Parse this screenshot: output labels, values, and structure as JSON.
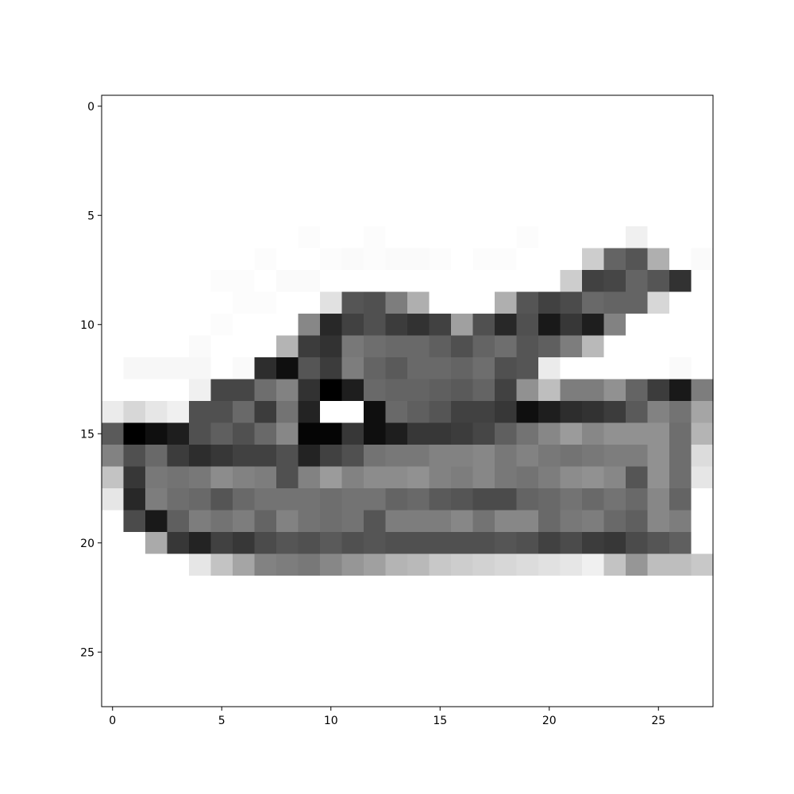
{
  "chart_data": {
    "type": "heatmap",
    "colormap": "gray_r",
    "value_range": [
      0,
      255
    ],
    "grid": false,
    "xlim": [
      -0.5,
      27.5
    ],
    "ylim": [
      27.5,
      -0.5
    ],
    "x_ticks": [
      0,
      5,
      10,
      15,
      20,
      25
    ],
    "y_ticks": [
      0,
      5,
      10,
      15,
      20,
      25
    ],
    "x_tick_labels": [
      "0",
      "5",
      "10",
      "15",
      "20",
      "25"
    ],
    "y_tick_labels": [
      "0",
      "5",
      "10",
      "15",
      "20",
      "25"
    ],
    "rows": 28,
    "cols": 28,
    "pixels": [
      [
        0,
        0,
        0,
        0,
        0,
        0,
        0,
        0,
        0,
        0,
        0,
        0,
        0,
        0,
        0,
        0,
        0,
        0,
        0,
        0,
        0,
        0,
        0,
        0,
        0,
        0,
        0,
        0
      ],
      [
        0,
        0,
        0,
        0,
        0,
        0,
        0,
        0,
        0,
        0,
        0,
        0,
        0,
        0,
        0,
        0,
        0,
        0,
        0,
        0,
        0,
        0,
        0,
        0,
        0,
        0,
        0,
        0
      ],
      [
        0,
        0,
        0,
        0,
        0,
        0,
        0,
        0,
        0,
        0,
        0,
        0,
        0,
        0,
        0,
        0,
        0,
        0,
        0,
        0,
        0,
        0,
        0,
        0,
        0,
        0,
        0,
        0
      ],
      [
        0,
        0,
        0,
        0,
        0,
        0,
        0,
        0,
        0,
        0,
        0,
        0,
        0,
        0,
        0,
        0,
        0,
        0,
        0,
        0,
        0,
        0,
        0,
        0,
        0,
        0,
        0,
        0
      ],
      [
        0,
        0,
        0,
        0,
        0,
        0,
        0,
        0,
        0,
        0,
        0,
        0,
        0,
        0,
        0,
        0,
        0,
        0,
        0,
        0,
        0,
        0,
        0,
        0,
        0,
        0,
        0,
        0
      ],
      [
        0,
        0,
        0,
        0,
        0,
        0,
        0,
        0,
        0,
        0,
        0,
        0,
        0,
        0,
        0,
        0,
        0,
        0,
        0,
        0,
        0,
        0,
        0,
        0,
        0,
        0,
        0,
        0
      ],
      [
        0,
        0,
        0,
        0,
        0,
        0,
        0,
        0,
        0,
        3,
        0,
        0,
        3,
        0,
        0,
        0,
        0,
        0,
        0,
        3,
        0,
        0,
        0,
        0,
        15,
        0,
        0,
        0
      ],
      [
        0,
        0,
        0,
        0,
        0,
        0,
        0,
        3,
        0,
        0,
        3,
        5,
        3,
        5,
        5,
        3,
        0,
        3,
        3,
        0,
        0,
        0,
        50,
        155,
        170,
        80,
        0,
        5
      ],
      [
        0,
        0,
        0,
        0,
        0,
        3,
        3,
        0,
        5,
        5,
        0,
        0,
        0,
        0,
        0,
        0,
        0,
        0,
        0,
        0,
        0,
        50,
        190,
        185,
        155,
        170,
        205,
        0
      ],
      [
        0,
        0,
        0,
        0,
        0,
        0,
        3,
        3,
        0,
        0,
        30,
        170,
        175,
        130,
        80,
        0,
        0,
        0,
        80,
        170,
        190,
        180,
        150,
        155,
        155,
        40,
        0,
        0
      ],
      [
        0,
        0,
        0,
        0,
        0,
        3,
        0,
        0,
        0,
        120,
        215,
        190,
        175,
        195,
        205,
        190,
        95,
        175,
        215,
        175,
        230,
        200,
        225,
        125,
        0,
        0,
        0,
        0
      ],
      [
        0,
        0,
        0,
        0,
        5,
        0,
        0,
        0,
        75,
        195,
        205,
        135,
        145,
        150,
        150,
        160,
        175,
        155,
        145,
        170,
        160,
        130,
        70,
        0,
        0,
        0,
        0,
        0
      ],
      [
        0,
        8,
        8,
        8,
        8,
        0,
        5,
        210,
        240,
        170,
        195,
        130,
        155,
        165,
        150,
        150,
        155,
        145,
        175,
        170,
        20,
        0,
        0,
        0,
        0,
        0,
        5,
        0
      ],
      [
        0,
        0,
        0,
        0,
        15,
        185,
        185,
        145,
        125,
        205,
        255,
        225,
        150,
        155,
        155,
        160,
        165,
        155,
        190,
        110,
        65,
        130,
        130,
        110,
        155,
        195,
        230,
        130
      ],
      [
        20,
        40,
        25,
        15,
        175,
        175,
        150,
        195,
        140,
        220,
        0,
        0,
        240,
        150,
        160,
        170,
        190,
        190,
        200,
        240,
        225,
        210,
        205,
        195,
        165,
        125,
        140,
        90
      ],
      [
        165,
        255,
        240,
        225,
        175,
        160,
        175,
        150,
        120,
        250,
        250,
        200,
        240,
        225,
        200,
        200,
        195,
        185,
        160,
        140,
        120,
        100,
        120,
        110,
        110,
        110,
        145,
        75
      ],
      [
        125,
        175,
        150,
        195,
        210,
        200,
        190,
        190,
        175,
        220,
        190,
        175,
        140,
        135,
        135,
        125,
        125,
        120,
        135,
        125,
        135,
        140,
        135,
        130,
        130,
        110,
        145,
        35
      ],
      [
        60,
        200,
        135,
        140,
        135,
        115,
        125,
        130,
        175,
        125,
        100,
        125,
        115,
        115,
        110,
        125,
        130,
        120,
        135,
        140,
        130,
        115,
        110,
        120,
        170,
        110,
        145,
        25
      ],
      [
        25,
        215,
        130,
        145,
        150,
        170,
        150,
        140,
        140,
        140,
        145,
        140,
        140,
        155,
        150,
        165,
        170,
        180,
        180,
        155,
        150,
        140,
        150,
        140,
        150,
        120,
        155,
        0
      ],
      [
        0,
        180,
        230,
        160,
        130,
        140,
        130,
        155,
        125,
        140,
        145,
        140,
        170,
        130,
        130,
        130,
        120,
        140,
        120,
        120,
        150,
        135,
        130,
        150,
        160,
        120,
        130,
        0
      ],
      [
        0,
        0,
        85,
        200,
        220,
        190,
        200,
        180,
        170,
        175,
        165,
        175,
        170,
        175,
        175,
        175,
        175,
        175,
        170,
        175,
        190,
        180,
        195,
        200,
        180,
        170,
        160,
        0
      ],
      [
        0,
        0,
        0,
        0,
        25,
        60,
        90,
        125,
        130,
        135,
        120,
        105,
        95,
        75,
        70,
        55,
        50,
        45,
        40,
        35,
        30,
        25,
        15,
        60,
        105,
        65,
        65,
        55
      ],
      [
        0,
        0,
        0,
        0,
        0,
        0,
        0,
        0,
        0,
        0,
        0,
        0,
        0,
        0,
        0,
        0,
        0,
        0,
        0,
        0,
        0,
        0,
        0,
        0,
        0,
        0,
        0,
        0
      ],
      [
        0,
        0,
        0,
        0,
        0,
        0,
        0,
        0,
        0,
        0,
        0,
        0,
        0,
        0,
        0,
        0,
        0,
        0,
        0,
        0,
        0,
        0,
        0,
        0,
        0,
        0,
        0,
        0
      ],
      [
        0,
        0,
        0,
        0,
        0,
        0,
        0,
        0,
        0,
        0,
        0,
        0,
        0,
        0,
        0,
        0,
        0,
        0,
        0,
        0,
        0,
        0,
        0,
        0,
        0,
        0,
        0,
        0
      ],
      [
        0,
        0,
        0,
        0,
        0,
        0,
        0,
        0,
        0,
        0,
        0,
        0,
        0,
        0,
        0,
        0,
        0,
        0,
        0,
        0,
        0,
        0,
        0,
        0,
        0,
        0,
        0,
        0
      ],
      [
        0,
        0,
        0,
        0,
        0,
        0,
        0,
        0,
        0,
        0,
        0,
        0,
        0,
        0,
        0,
        0,
        0,
        0,
        0,
        0,
        0,
        0,
        0,
        0,
        0,
        0,
        0,
        0
      ],
      [
        0,
        0,
        0,
        0,
        0,
        0,
        0,
        0,
        0,
        0,
        0,
        0,
        0,
        0,
        0,
        0,
        0,
        0,
        0,
        0,
        0,
        0,
        0,
        0,
        0,
        0,
        0,
        0
      ]
    ]
  }
}
